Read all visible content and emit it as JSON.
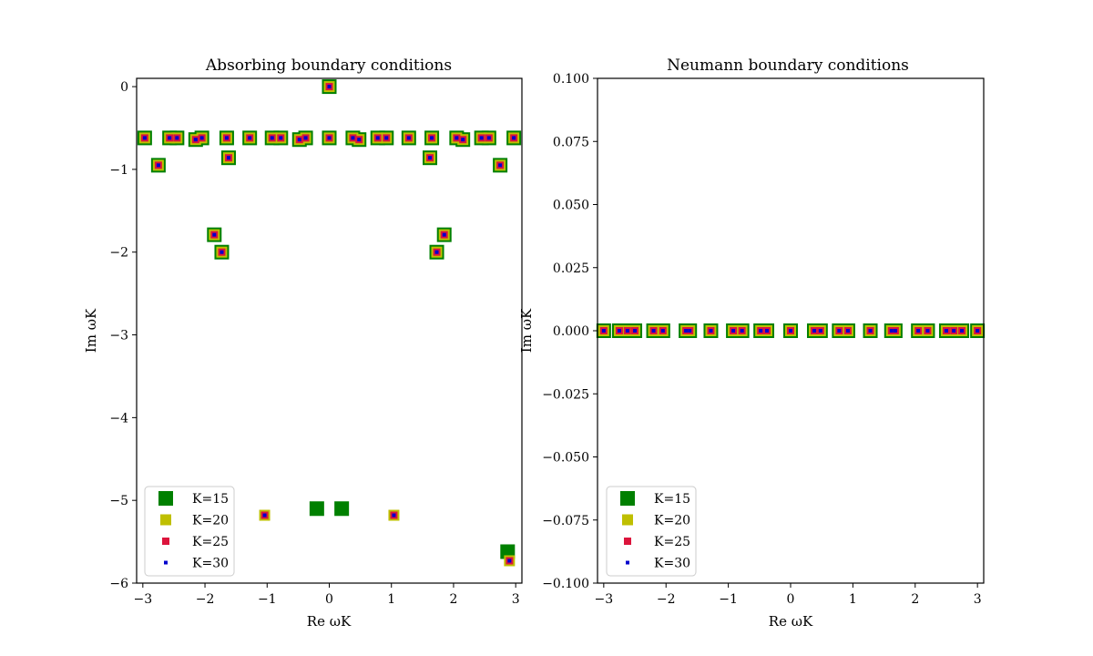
{
  "chart_data": [
    {
      "type": "scatter",
      "title": "Absorbing boundary conditions",
      "xlabel": "Re ωK",
      "ylabel": "Im ωK",
      "xlim": [
        -3.1,
        3.1
      ],
      "ylim": [
        -6.0,
        0.1
      ],
      "xticks": [
        -3,
        -2,
        -1,
        0,
        1,
        2,
        3
      ],
      "xtick_labels": [
        "−3",
        "−2",
        "−1",
        "0",
        "1",
        "2",
        "3"
      ],
      "yticks": [
        0,
        -1,
        -2,
        -3,
        -4,
        -5,
        -6
      ],
      "ytick_labels": [
        "0",
        "−1",
        "−2",
        "−3",
        "−4",
        "−5",
        "−6"
      ],
      "grid": false,
      "legend_position": "lower-left",
      "series": [
        {
          "name": "K=15",
          "color": "#008000",
          "marker": "square",
          "size": 16,
          "x": [
            -2.97,
            -2.75,
            -2.57,
            -2.45,
            -2.15,
            -2.05,
            -1.85,
            -1.73,
            -1.65,
            -1.62,
            -1.28,
            -0.92,
            -0.78,
            -0.48,
            -0.38,
            0.0,
            0.0,
            0.38,
            0.48,
            0.78,
            0.92,
            1.28,
            1.62,
            1.65,
            1.73,
            1.85,
            2.05,
            2.15,
            2.45,
            2.57,
            2.75,
            2.97,
            -0.2,
            0.2,
            2.87
          ],
          "y": [
            -0.62,
            -0.95,
            -0.62,
            -0.62,
            -0.64,
            -0.62,
            -1.79,
            -2.0,
            -0.62,
            -0.86,
            -0.62,
            -0.62,
            -0.62,
            -0.64,
            -0.62,
            0.0,
            -0.62,
            -0.62,
            -0.64,
            -0.62,
            -0.62,
            -0.62,
            -0.86,
            -0.62,
            -2.0,
            -1.79,
            -0.62,
            -0.64,
            -0.62,
            -0.62,
            -0.95,
            -0.62,
            -5.1,
            -5.1,
            -5.62
          ]
        },
        {
          "name": "K=20",
          "color": "#bfbf00",
          "marker": "square",
          "size": 12,
          "x": [
            -2.97,
            -2.75,
            -2.57,
            -2.45,
            -2.15,
            -2.05,
            -1.85,
            -1.73,
            -1.65,
            -1.62,
            -1.28,
            -0.92,
            -0.78,
            -0.48,
            -0.38,
            0.0,
            0.0,
            0.38,
            0.48,
            0.78,
            0.92,
            1.28,
            1.62,
            1.65,
            1.73,
            1.85,
            2.05,
            2.15,
            2.45,
            2.57,
            2.75,
            2.97,
            -1.04,
            1.04,
            2.9
          ],
          "y": [
            -0.62,
            -0.95,
            -0.62,
            -0.62,
            -0.64,
            -0.62,
            -1.79,
            -2.0,
            -0.62,
            -0.86,
            -0.62,
            -0.62,
            -0.62,
            -0.64,
            -0.62,
            0.0,
            -0.62,
            -0.62,
            -0.64,
            -0.62,
            -0.62,
            -0.62,
            -0.86,
            -0.62,
            -2.0,
            -1.79,
            -0.62,
            -0.64,
            -0.62,
            -0.62,
            -0.95,
            -0.62,
            -5.18,
            -5.18,
            -5.73
          ]
        },
        {
          "name": "K=25",
          "color": "#dc143c",
          "marker": "square",
          "size": 8,
          "x": [
            -2.97,
            -2.75,
            -2.57,
            -2.45,
            -2.15,
            -2.05,
            -1.85,
            -1.73,
            -1.65,
            -1.62,
            -1.28,
            -0.92,
            -0.78,
            -0.48,
            -0.38,
            0.0,
            0.0,
            0.38,
            0.48,
            0.78,
            0.92,
            1.28,
            1.62,
            1.65,
            1.73,
            1.85,
            2.05,
            2.15,
            2.45,
            2.57,
            2.75,
            2.97,
            -1.04,
            1.04,
            2.9
          ],
          "y": [
            -0.62,
            -0.95,
            -0.62,
            -0.62,
            -0.64,
            -0.62,
            -1.79,
            -2.0,
            -0.62,
            -0.86,
            -0.62,
            -0.62,
            -0.62,
            -0.64,
            -0.62,
            0.0,
            -0.62,
            -0.62,
            -0.64,
            -0.62,
            -0.62,
            -0.62,
            -0.86,
            -0.62,
            -2.0,
            -1.79,
            -0.62,
            -0.64,
            -0.62,
            -0.62,
            -0.95,
            -0.62,
            -5.18,
            -5.18,
            -5.73
          ]
        },
        {
          "name": "K=30",
          "color": "#0000cd",
          "marker": "square",
          "size": 4,
          "x": [
            -2.97,
            -2.75,
            -2.57,
            -2.45,
            -2.15,
            -2.05,
            -1.85,
            -1.73,
            -1.65,
            -1.62,
            -1.28,
            -0.92,
            -0.78,
            -0.48,
            -0.38,
            0.0,
            0.0,
            0.38,
            0.48,
            0.78,
            0.92,
            1.28,
            1.62,
            1.65,
            1.73,
            1.85,
            2.05,
            2.15,
            2.45,
            2.57,
            2.75,
            2.97,
            -1.04,
            1.04,
            2.9
          ],
          "y": [
            -0.62,
            -0.95,
            -0.62,
            -0.62,
            -0.64,
            -0.62,
            -1.79,
            -2.0,
            -0.62,
            -0.86,
            -0.62,
            -0.62,
            -0.62,
            -0.64,
            -0.62,
            0.0,
            -0.62,
            -0.62,
            -0.64,
            -0.62,
            -0.62,
            -0.62,
            -0.86,
            -0.62,
            -2.0,
            -1.79,
            -0.62,
            -0.64,
            -0.62,
            -0.62,
            -0.95,
            -0.62,
            -5.18,
            -5.18,
            -5.73
          ]
        }
      ]
    },
    {
      "type": "scatter",
      "title": "Neumann boundary conditions",
      "xlabel": "Re ωK",
      "ylabel": "Im ωK",
      "xlim": [
        -3.1,
        3.1
      ],
      "ylim": [
        -0.1,
        0.1
      ],
      "xticks": [
        -3,
        -2,
        -1,
        0,
        1,
        2,
        3
      ],
      "xtick_labels": [
        "−3",
        "−2",
        "−1",
        "0",
        "1",
        "2",
        "3"
      ],
      "yticks": [
        0.1,
        0.075,
        0.05,
        0.025,
        0.0,
        -0.025,
        -0.05,
        -0.075,
        -0.1
      ],
      "ytick_labels": [
        "0.100",
        "0.075",
        "0.050",
        "0.025",
        "0.000",
        "−0.025",
        "−0.050",
        "−0.075",
        "−0.100"
      ],
      "grid": false,
      "legend_position": "lower-left",
      "series": [
        {
          "name": "K=15",
          "color": "#008000",
          "marker": "square",
          "size": 16,
          "x": [
            -3.0,
            -2.75,
            -2.62,
            -2.5,
            -2.2,
            -2.05,
            -1.68,
            -1.62,
            -1.28,
            -0.92,
            -0.78,
            -0.48,
            -0.38,
            0.0,
            0.38,
            0.48,
            0.78,
            0.92,
            1.28,
            1.62,
            1.68,
            2.05,
            2.2,
            2.5,
            2.62,
            2.75,
            3.0
          ],
          "y": [
            0,
            0,
            0,
            0,
            0,
            0,
            0,
            0,
            0,
            0,
            0,
            0,
            0,
            0,
            0,
            0,
            0,
            0,
            0,
            0,
            0,
            0,
            0,
            0,
            0,
            0,
            0
          ]
        },
        {
          "name": "K=20",
          "color": "#bfbf00",
          "marker": "square",
          "size": 12,
          "x": [
            -3.0,
            -2.75,
            -2.62,
            -2.5,
            -2.2,
            -2.05,
            -1.68,
            -1.62,
            -1.28,
            -0.92,
            -0.78,
            -0.48,
            -0.38,
            0.0,
            0.38,
            0.48,
            0.78,
            0.92,
            1.28,
            1.62,
            1.68,
            2.05,
            2.2,
            2.5,
            2.62,
            2.75,
            3.0
          ],
          "y": [
            0,
            0,
            0,
            0,
            0,
            0,
            0,
            0,
            0,
            0,
            0,
            0,
            0,
            0,
            0,
            0,
            0,
            0,
            0,
            0,
            0,
            0,
            0,
            0,
            0,
            0,
            0
          ]
        },
        {
          "name": "K=25",
          "color": "#dc143c",
          "marker": "square",
          "size": 8,
          "x": [
            -3.0,
            -2.75,
            -2.62,
            -2.5,
            -2.2,
            -2.05,
            -1.68,
            -1.62,
            -1.28,
            -0.92,
            -0.78,
            -0.48,
            -0.38,
            0.0,
            0.38,
            0.48,
            0.78,
            0.92,
            1.28,
            1.62,
            1.68,
            2.05,
            2.2,
            2.5,
            2.62,
            2.75,
            3.0
          ],
          "y": [
            0,
            0,
            0,
            0,
            0,
            0,
            0,
            0,
            0,
            0,
            0,
            0,
            0,
            0,
            0,
            0,
            0,
            0,
            0,
            0,
            0,
            0,
            0,
            0,
            0,
            0,
            0
          ]
        },
        {
          "name": "K=30",
          "color": "#0000cd",
          "marker": "square",
          "size": 4,
          "x": [
            -3.0,
            -2.75,
            -2.62,
            -2.5,
            -2.2,
            -2.05,
            -1.68,
            -1.62,
            -1.28,
            -0.92,
            -0.78,
            -0.48,
            -0.38,
            0.0,
            0.38,
            0.48,
            0.78,
            0.92,
            1.28,
            1.62,
            1.68,
            2.05,
            2.2,
            2.5,
            2.62,
            2.75,
            3.0
          ],
          "y": [
            0,
            0,
            0,
            0,
            0,
            0,
            0,
            0,
            0,
            0,
            0,
            0,
            0,
            0,
            0,
            0,
            0,
            0,
            0,
            0,
            0,
            0,
            0,
            0,
            0,
            0,
            0
          ]
        }
      ]
    }
  ]
}
